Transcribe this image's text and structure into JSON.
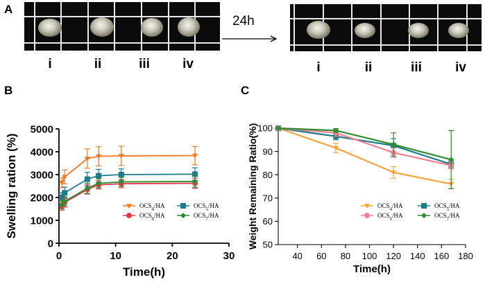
{
  "panels": {
    "a": "A",
    "b": "B",
    "c": "C"
  },
  "photo_section": {
    "labels": [
      "i",
      "ii",
      "iii",
      "iv"
    ],
    "arrow_label": "24h",
    "grid_color": "#e9e9e9",
    "background_color": "#0b0b0b"
  },
  "chart_data": [
    {
      "type": "line",
      "title": "",
      "xlabel": "Time(h)",
      "ylabel": "Swelling ration (%)",
      "xlim": [
        0,
        30
      ],
      "ylim": [
        0,
        5000
      ],
      "xticks": [
        0,
        10,
        20,
        30
      ],
      "yticks": [
        0,
        1000,
        2000,
        3000,
        4000,
        5000
      ],
      "x": [
        0.5,
        1,
        5,
        7,
        11,
        24
      ],
      "legend_position": "bottom-right",
      "series": [
        {
          "name": "OCS4/HA",
          "sub": "4",
          "color": "#f47920",
          "marker": "triangle-down",
          "values": [
            2650,
            2900,
            3700,
            3800,
            3820,
            3830
          ],
          "errors": [
            220,
            300,
            420,
            420,
            420,
            400
          ]
        },
        {
          "name": "OCS5/HA",
          "sub": "5",
          "color": "#1b7a8c",
          "marker": "square",
          "values": [
            2000,
            2200,
            2800,
            2950,
            3000,
            3020
          ],
          "errors": [
            200,
            250,
            300,
            280,
            250,
            280
          ]
        },
        {
          "name": "OCS6/HA",
          "sub": "6",
          "color": "#e8394b",
          "marker": "circle",
          "values": [
            1620,
            1780,
            2350,
            2550,
            2600,
            2620
          ],
          "errors": [
            180,
            200,
            200,
            180,
            180,
            220
          ]
        },
        {
          "name": "OCS7/HA",
          "sub": "7",
          "color": "#2e8b2e",
          "marker": "diamond",
          "values": [
            1680,
            1830,
            2400,
            2620,
            2680,
            2700
          ],
          "errors": [
            180,
            200,
            220,
            200,
            200,
            250
          ]
        }
      ]
    },
    {
      "type": "line",
      "title": "",
      "xlabel": "Time(h)",
      "ylabel": "Weight Remaining Ratio(%)",
      "xlim": [
        24,
        180
      ],
      "ylim": [
        50,
        100
      ],
      "xticks": [
        40,
        60,
        80,
        100,
        120,
        140,
        160,
        180
      ],
      "yticks": [
        50,
        60,
        70,
        80,
        90,
        100
      ],
      "x": [
        24,
        72,
        120,
        168
      ],
      "legend_position": "bottom-right",
      "series": [
        {
          "name": "OCS4/HA",
          "sub": "4",
          "color": "#f9a23b",
          "marker": "triangle-down",
          "values": [
            100,
            91.5,
            81,
            76
          ],
          "errors": [
            0,
            2,
            2.5,
            2
          ]
        },
        {
          "name": "OCS5/HA",
          "sub": "5",
          "color": "#1b7a8c",
          "marker": "square",
          "values": [
            100,
            96.5,
            92.5,
            84.5
          ],
          "errors": [
            0,
            1.5,
            3,
            1.5
          ]
        },
        {
          "name": "OCS6/HA",
          "sub": "6",
          "color": "#f28090",
          "marker": "circle",
          "values": [
            100,
            98,
            89.5,
            84
          ],
          "errors": [
            0,
            1.5,
            2,
            1.5
          ]
        },
        {
          "name": "OCS7/HA",
          "sub": "7",
          "color": "#2e8b2e",
          "marker": "diamond",
          "values": [
            100,
            99,
            93,
            86.5
          ],
          "errors": [
            0,
            0.8,
            5,
            12.5
          ]
        }
      ]
    }
  ]
}
